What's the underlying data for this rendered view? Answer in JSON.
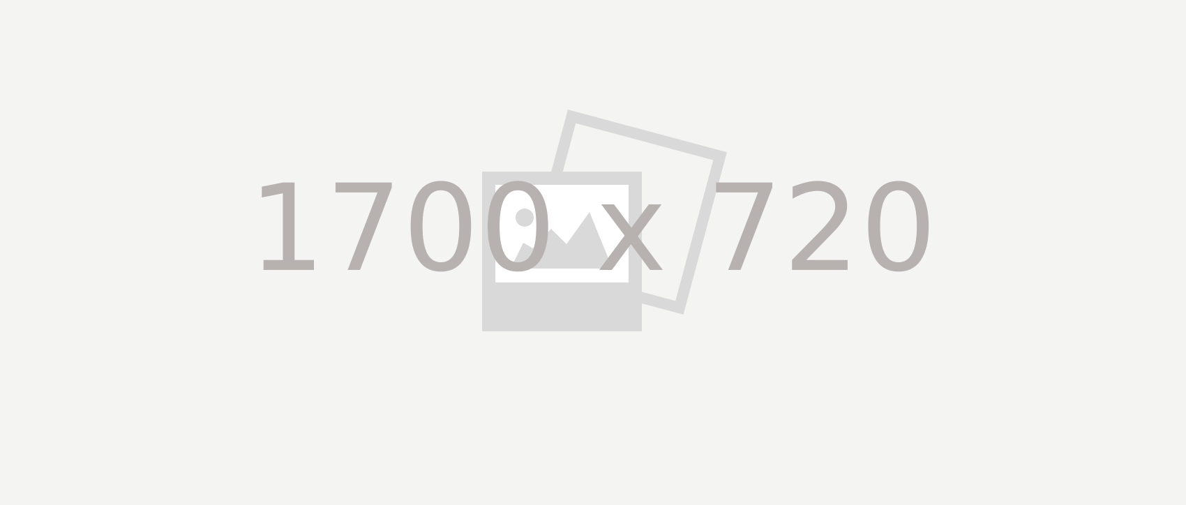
{
  "placeholder": {
    "dimensions_text": "1700 x 720",
    "icon": "image-placeholder-icon",
    "colors": {
      "background": "#f4f4f2",
      "icon": "#d9d9d9",
      "text": "#b7b1b0"
    }
  }
}
